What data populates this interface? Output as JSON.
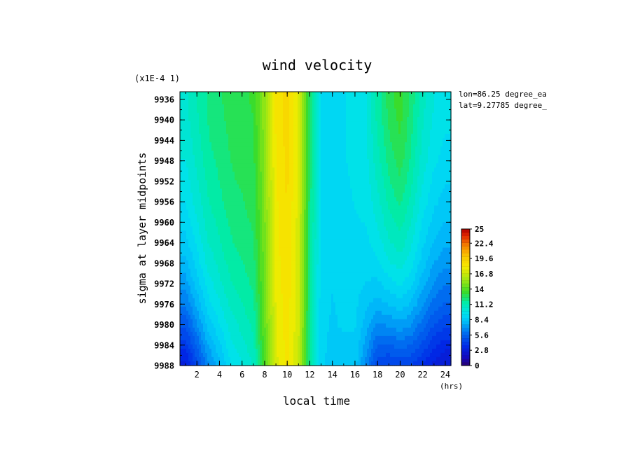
{
  "chart_data": {
    "type": "heatmap",
    "title": "wind velocity",
    "xlabel": "local time",
    "xunit": "(hrs)",
    "ylabel": "sigma at layer midpoints",
    "yscale_note": "(x1E-4 1)",
    "annotations": [
      "lon=86.25 degree_ea",
      "lat=9.27785 degree_"
    ],
    "xlim": [
      0.5,
      24.5
    ],
    "ylim": [
      9988,
      9934.5
    ],
    "x_ticks": [
      2,
      4,
      6,
      8,
      10,
      12,
      14,
      16,
      18,
      20,
      22,
      24
    ],
    "y_ticks": [
      9936,
      9940,
      9944,
      9948,
      9952,
      9956,
      9960,
      9964,
      9968,
      9972,
      9976,
      9980,
      9984,
      9988
    ],
    "colorbar": {
      "min": 0,
      "max": 25,
      "tick_labels": [
        "0",
        "2.8",
        "5.6",
        "8.4",
        "11.2",
        "14",
        "16.8",
        "19.6",
        "22.4",
        "25"
      ],
      "tick_values": [
        0,
        2.8,
        5.6,
        8.4,
        11.2,
        14,
        16.8,
        19.6,
        22.4,
        25
      ]
    },
    "x": [
      1,
      3,
      5,
      7,
      8,
      9,
      10,
      11,
      12,
      13,
      14,
      15,
      16,
      17,
      18,
      19,
      20,
      21,
      22,
      23,
      24
    ],
    "y": [
      9936,
      9940,
      9944,
      9948,
      9952,
      9956,
      9960,
      9964,
      9968,
      9972,
      9976,
      9980,
      9984,
      9988
    ],
    "z": [
      [
        10.5,
        12.0,
        12.8,
        13.2,
        15.5,
        18.3,
        19.0,
        17.5,
        12.5,
        9.3,
        9.0,
        9.3,
        9.6,
        10.0,
        11.5,
        12.8,
        13.5,
        12.3,
        10.8,
        10.0,
        9.6
      ],
      [
        10.4,
        11.9,
        12.7,
        13.1,
        15.4,
        18.3,
        19.0,
        17.5,
        12.5,
        9.3,
        9.0,
        9.3,
        9.6,
        10.0,
        11.4,
        12.6,
        13.3,
        12.1,
        10.7,
        9.9,
        9.5
      ],
      [
        10.2,
        11.8,
        12.6,
        13.0,
        15.3,
        18.2,
        19.0,
        17.4,
        12.4,
        9.3,
        9.0,
        9.3,
        9.6,
        9.9,
        11.2,
        12.4,
        13.1,
        11.9,
        10.5,
        9.7,
        9.3
      ],
      [
        10.0,
        11.6,
        12.5,
        12.9,
        15.2,
        18.2,
        18.9,
        17.4,
        12.4,
        9.3,
        9.0,
        9.3,
        9.6,
        9.8,
        11.0,
        12.1,
        12.8,
        11.7,
        10.3,
        9.5,
        9.1
      ],
      [
        9.7,
        11.4,
        12.4,
        12.8,
        15.1,
        18.1,
        18.9,
        17.3,
        12.3,
        9.2,
        9.0,
        9.2,
        9.5,
        9.7,
        10.7,
        11.8,
        12.4,
        11.4,
        10.0,
        9.2,
        8.8
      ],
      [
        9.4,
        11.2,
        12.2,
        12.7,
        15.0,
        18.0,
        18.8,
        17.3,
        12.2,
        9.2,
        8.9,
        9.2,
        9.4,
        9.6,
        10.4,
        11.4,
        12.0,
        11.0,
        9.7,
        8.9,
        8.5
      ],
      [
        9.0,
        10.9,
        12.0,
        12.6,
        14.9,
        17.9,
        18.8,
        17.2,
        12.2,
        9.2,
        8.9,
        9.1,
        9.3,
        9.4,
        10.1,
        11.0,
        11.5,
        10.6,
        9.3,
        8.5,
        8.1
      ],
      [
        8.5,
        10.6,
        11.8,
        12.4,
        14.8,
        17.9,
        18.7,
        17.2,
        12.1,
        9.1,
        8.9,
        9.1,
        9.2,
        9.2,
        9.7,
        10.5,
        11.0,
        10.1,
        8.9,
        8.1,
        7.6
      ],
      [
        7.9,
        10.2,
        11.5,
        12.2,
        14.7,
        17.8,
        18.7,
        17.1,
        12.0,
        9.1,
        8.8,
        9.0,
        9.1,
        9.0,
        9.2,
        9.9,
        10.3,
        9.6,
        8.4,
        7.5,
        7.0
      ],
      [
        7.2,
        9.7,
        11.2,
        12.0,
        14.6,
        17.7,
        18.6,
        17.1,
        12.0,
        9.0,
        8.8,
        9.0,
        9.0,
        8.7,
        8.6,
        9.1,
        9.5,
        8.9,
        7.7,
        6.8,
        6.3
      ],
      [
        6.3,
        9.1,
        10.8,
        11.7,
        14.4,
        17.6,
        18.5,
        17.0,
        11.9,
        9.0,
        8.7,
        8.9,
        8.9,
        8.3,
        7.8,
        8.2,
        8.5,
        8.0,
        6.9,
        6.0,
        5.5
      ],
      [
        5.2,
        8.4,
        10.3,
        11.4,
        14.3,
        17.5,
        18.5,
        17.0,
        11.8,
        8.9,
        8.7,
        8.8,
        8.8,
        7.8,
        6.8,
        7.0,
        7.3,
        6.9,
        5.9,
        5.0,
        4.5
      ],
      [
        4.0,
        7.5,
        9.8,
        11.0,
        14.1,
        17.4,
        18.4,
        16.9,
        11.7,
        8.9,
        8.6,
        8.7,
        8.6,
        7.2,
        5.6,
        5.6,
        5.9,
        5.6,
        4.8,
        3.9,
        3.4
      ],
      [
        2.8,
        6.6,
        9.3,
        10.7,
        13.9,
        17.3,
        18.3,
        16.8,
        11.6,
        8.8,
        8.6,
        8.7,
        8.5,
        6.6,
        4.5,
        4.3,
        4.6,
        4.3,
        3.7,
        2.9,
        2.4
      ]
    ]
  }
}
